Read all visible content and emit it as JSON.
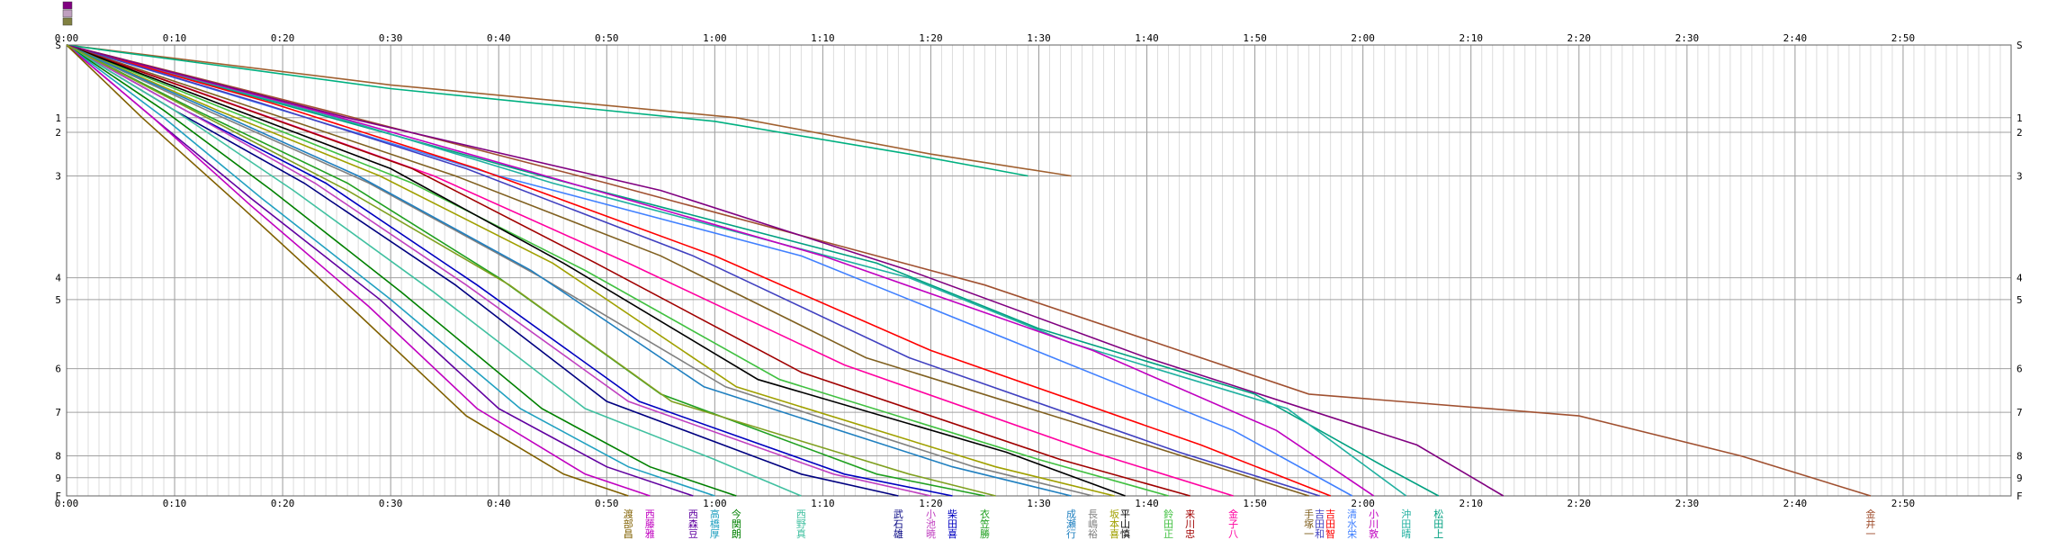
{
  "chart_data": {
    "type": "line",
    "xlim": [
      0,
      180
    ],
    "x_ticks": [
      {
        "v": 0,
        "label": "0:00"
      },
      {
        "v": 10,
        "label": "0:10"
      },
      {
        "v": 20,
        "label": "0:20"
      },
      {
        "v": 30,
        "label": "0:30"
      },
      {
        "v": 40,
        "label": "0:40"
      },
      {
        "v": 50,
        "label": "0:50"
      },
      {
        "v": 60,
        "label": "1:00"
      },
      {
        "v": 70,
        "label": "1:10"
      },
      {
        "v": 80,
        "label": "1:20"
      },
      {
        "v": 90,
        "label": "1:30"
      },
      {
        "v": 100,
        "label": "1:40"
      },
      {
        "v": 110,
        "label": "1:50"
      },
      {
        "v": 120,
        "label": "2:00"
      },
      {
        "v": 130,
        "label": "2:10"
      },
      {
        "v": 140,
        "label": "2:20"
      },
      {
        "v": 150,
        "label": "2:30"
      },
      {
        "v": 160,
        "label": "2:40"
      },
      {
        "v": 170,
        "label": "2:50"
      }
    ],
    "y_checkpoints": [
      {
        "v": 0,
        "label": "S"
      },
      {
        "v": 1,
        "label": "1"
      },
      {
        "v": 1.2,
        "label": "2"
      },
      {
        "v": 1.8,
        "label": "3"
      },
      {
        "v": 3.2,
        "label": "4"
      },
      {
        "v": 3.5,
        "label": "5"
      },
      {
        "v": 4.45,
        "label": "6"
      },
      {
        "v": 5.05,
        "label": "7"
      },
      {
        "v": 5.65,
        "label": "8"
      },
      {
        "v": 5.95,
        "label": "9"
      },
      {
        "v": 6.2,
        "label": "F"
      }
    ],
    "legend_swatches": [
      "#800080",
      "#c0a0c0",
      "#808040"
    ],
    "series": [
      {
        "name": "松田上",
        "color": "#00a080",
        "points": [
          [
            0,
            0
          ],
          [
            22,
            0.9
          ],
          [
            44,
            1.8
          ],
          [
            75,
            3.0
          ],
          [
            90,
            3.9
          ],
          [
            110,
            4.8
          ],
          [
            122,
            5.8
          ],
          [
            127,
            6.2
          ]
        ]
      },
      {
        "name": "沖田晴",
        "color": "#20b0a0",
        "points": [
          [
            0,
            0
          ],
          [
            25,
            1.0
          ],
          [
            45,
            1.9
          ],
          [
            78,
            3.2
          ],
          [
            93,
            4.1
          ],
          [
            113,
            5.0
          ],
          [
            124,
            6.2
          ]
        ]
      },
      {
        "name": "小川敦",
        "color": "#c000c0",
        "points": [
          [
            0,
            0
          ],
          [
            23,
            0.9
          ],
          [
            42,
            1.7
          ],
          [
            70,
            2.9
          ],
          [
            95,
            4.2
          ],
          [
            112,
            5.3
          ],
          [
            121,
            6.2
          ]
        ]
      },
      {
        "name": "清水栄",
        "color": "#4080ff",
        "points": [
          [
            0,
            0
          ],
          [
            20,
            0.9
          ],
          [
            40,
            1.8
          ],
          [
            68,
            2.9
          ],
          [
            88,
            4.1
          ],
          [
            108,
            5.3
          ],
          [
            119,
            6.2
          ]
        ]
      },
      {
        "name": "吉田智",
        "color": "#ff0000",
        "points": [
          [
            0,
            0
          ],
          [
            19,
            0.8
          ],
          [
            38,
            1.7
          ],
          [
            60,
            2.9
          ],
          [
            80,
            4.2
          ],
          [
            105,
            5.5
          ],
          [
            117,
            6.2
          ]
        ]
      },
      {
        "name": "吉田和",
        "color": "#4040c0",
        "points": [
          [
            0,
            0
          ],
          [
            18,
            0.8
          ],
          [
            37,
            1.7
          ],
          [
            58,
            2.9
          ],
          [
            78,
            4.3
          ],
          [
            103,
            5.6
          ],
          [
            116,
            6.2
          ]
        ]
      },
      {
        "name": "手塚一",
        "color": "#806020",
        "points": [
          [
            0,
            0
          ],
          [
            18,
            0.9
          ],
          [
            36,
            1.8
          ],
          [
            55,
            2.9
          ],
          [
            74,
            4.3
          ],
          [
            100,
            5.5
          ],
          [
            115,
            6.2
          ]
        ]
      },
      {
        "name": "金子八",
        "color": "#ff00a0",
        "points": [
          [
            0,
            0
          ],
          [
            17,
            0.9
          ],
          [
            34,
            1.8
          ],
          [
            52,
            3.0
          ],
          [
            72,
            4.4
          ],
          [
            95,
            5.6
          ],
          [
            108,
            6.2
          ]
        ]
      },
      {
        "name": "来川忠",
        "color": "#a00000",
        "points": [
          [
            0,
            0
          ],
          [
            15,
            0.8
          ],
          [
            32,
            1.7
          ],
          [
            49,
            3.0
          ],
          [
            68,
            4.5
          ],
          [
            92,
            5.7
          ],
          [
            104,
            6.2
          ]
        ]
      },
      {
        "name": "鈴田正",
        "color": "#40c040",
        "points": [
          [
            0,
            0
          ],
          [
            15,
            0.9
          ],
          [
            32,
            1.9
          ],
          [
            48,
            3.1
          ],
          [
            66,
            4.6
          ],
          [
            90,
            5.7
          ],
          [
            102,
            6.2
          ]
        ]
      },
      {
        "name": "平山慎",
        "color": "#000000",
        "points": [
          [
            0,
            0
          ],
          [
            14,
            0.8
          ],
          [
            30,
            1.7
          ],
          [
            46,
            3.0
          ],
          [
            64,
            4.6
          ],
          [
            87,
            5.6
          ],
          [
            98,
            6.2
          ]
        ]
      },
      {
        "name": "坂本喜",
        "color": "#a0a000",
        "points": [
          [
            0,
            0
          ],
          [
            14,
            0.9
          ],
          [
            29,
            1.8
          ],
          [
            45,
            3.0
          ],
          [
            62,
            4.7
          ],
          [
            86,
            5.8
          ],
          [
            97,
            6.2
          ]
        ]
      },
      {
        "name": "長嶋裕",
        "color": "#808080",
        "points": [
          [
            0,
            0
          ],
          [
            13,
            0.9
          ],
          [
            28,
            1.9
          ],
          [
            44,
            3.2
          ],
          [
            61,
            4.7
          ],
          [
            84,
            5.8
          ],
          [
            95,
            6.2
          ]
        ]
      },
      {
        "name": "成瀬行",
        "color": "#2080c0",
        "points": [
          [
            0,
            0
          ],
          [
            12,
            0.8
          ],
          [
            27,
            1.8
          ],
          [
            43,
            3.1
          ],
          [
            59,
            4.7
          ],
          [
            82,
            5.8
          ],
          [
            93,
            6.2
          ]
        ]
      },
      {
        "name": "衣笠勝",
        "color": "#20a020",
        "points": [
          [
            0,
            0
          ],
          [
            12,
            0.9
          ],
          [
            26,
            1.9
          ],
          [
            40,
            3.2
          ],
          [
            55,
            4.8
          ],
          [
            75,
            5.9
          ],
          [
            85,
            6.2
          ]
        ]
      },
      {
        "name": "柴田喜",
        "color": "#0000c0",
        "points": [
          [
            0,
            0
          ],
          [
            11,
            0.9
          ],
          [
            24,
            1.9
          ],
          [
            38,
            3.3
          ],
          [
            53,
            4.9
          ],
          [
            72,
            5.9
          ],
          [
            82,
            6.2
          ]
        ]
      },
      {
        "name": "小池暁",
        "color": "#c040c0",
        "points": [
          [
            0,
            0
          ],
          [
            11,
            0.9
          ],
          [
            23,
            1.9
          ],
          [
            37,
            3.3
          ],
          [
            52,
            4.9
          ],
          [
            71,
            5.9
          ],
          [
            80,
            6.2
          ]
        ]
      },
      {
        "name": "武石雄",
        "color": "#000080",
        "points": [
          [
            0,
            0
          ],
          [
            10,
            0.9
          ],
          [
            22,
            1.9
          ],
          [
            36,
            3.3
          ],
          [
            50,
            4.9
          ],
          [
            68,
            5.9
          ],
          [
            77,
            6.2
          ]
        ]
      },
      {
        "name": "西野真",
        "color": "#40c0a0",
        "points": [
          [
            0,
            0
          ],
          [
            10,
            0.9
          ],
          [
            21,
            2.0
          ],
          [
            34,
            3.4
          ],
          [
            48,
            5.0
          ],
          [
            60,
            5.7
          ],
          [
            68,
            6.2
          ]
        ]
      },
      {
        "name": "今関朗",
        "color": "#008000",
        "points": [
          [
            0,
            0
          ],
          [
            9,
            0.9
          ],
          [
            19,
            2.0
          ],
          [
            31,
            3.4
          ],
          [
            44,
            5.0
          ],
          [
            54,
            5.8
          ],
          [
            62,
            6.2
          ]
        ]
      },
      {
        "name": "高橋厚",
        "color": "#20a0c0",
        "points": [
          [
            0,
            0
          ],
          [
            9,
            1.0
          ],
          [
            18,
            2.1
          ],
          [
            30,
            3.5
          ],
          [
            42,
            5.0
          ],
          [
            52,
            5.8
          ],
          [
            60,
            6.2
          ]
        ]
      },
      {
        "name": "西森豆",
        "color": "#6000a0",
        "points": [
          [
            0,
            0
          ],
          [
            8,
            1.0
          ],
          [
            17,
            2.1
          ],
          [
            29,
            3.5
          ],
          [
            40,
            5.0
          ],
          [
            50,
            5.8
          ],
          [
            58,
            6.2
          ]
        ]
      },
      {
        "name": "西藤雅",
        "color": "#c000c0",
        "points": [
          [
            0,
            0
          ],
          [
            8,
            1.0
          ],
          [
            17,
            2.2
          ],
          [
            28,
            3.6
          ],
          [
            38,
            5.0
          ],
          [
            48,
            5.9
          ],
          [
            54,
            6.2
          ]
        ]
      },
      {
        "name": "渡部昌",
        "color": "#806000",
        "points": [
          [
            0,
            0
          ],
          [
            7,
            1.0
          ],
          [
            16,
            2.2
          ],
          [
            27,
            3.7
          ],
          [
            37,
            5.1
          ],
          [
            46,
            5.9
          ],
          [
            52,
            6.2
          ]
        ]
      },
      {
        "name": "金井一",
        "color": "#a05030",
        "points": [
          [
            0,
            0
          ],
          [
            24,
            0.9
          ],
          [
            50,
            1.9
          ],
          [
            85,
            3.3
          ],
          [
            115,
            4.8
          ],
          [
            140,
            5.1
          ],
          [
            155,
            5.65
          ],
          [
            167,
            6.2
          ]
        ]
      },
      {
        "name": "",
        "color": "#a06030",
        "points": [
          [
            0,
            0
          ],
          [
            30,
            0.55
          ],
          [
            62,
            1.0
          ],
          [
            80,
            1.5
          ],
          [
            93,
            1.8
          ]
        ]
      },
      {
        "name": "",
        "color": "#00b080",
        "points": [
          [
            0,
            0
          ],
          [
            30,
            0.6
          ],
          [
            60,
            1.05
          ],
          [
            78,
            1.5
          ],
          [
            89,
            1.8
          ]
        ]
      },
      {
        "name": "",
        "color": "#800080",
        "points": [
          [
            0,
            0
          ],
          [
            26,
            1.0
          ],
          [
            55,
            2.0
          ],
          [
            78,
            3.1
          ],
          [
            100,
            4.3
          ],
          [
            125,
            5.5
          ],
          [
            133,
            6.2
          ]
        ]
      },
      {
        "name": "",
        "color": "#80a020",
        "points": [
          [
            0,
            0
          ],
          [
            13,
            1.0
          ],
          [
            26,
            2.0
          ],
          [
            41,
            3.3
          ],
          [
            56,
            4.9
          ],
          [
            78,
            5.9
          ],
          [
            86,
            6.2
          ]
        ]
      }
    ]
  }
}
